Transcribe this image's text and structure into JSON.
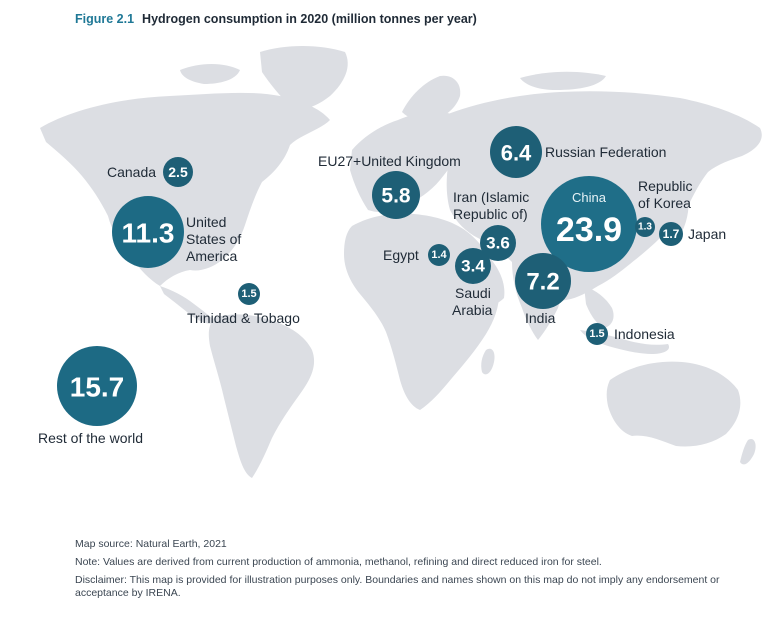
{
  "figure": {
    "number": "Figure 2.1",
    "title": "Hydrogen consumption in 2020 (million tonnes per year)"
  },
  "colors": {
    "bubble": "#1e5f76",
    "land": "#dcdee3",
    "title_accent": "#1f7896"
  },
  "bubbles": [
    {
      "id": "canada",
      "name": "Canada",
      "value": "2.5"
    },
    {
      "id": "usa",
      "name_lines": [
        "United",
        "States of",
        "America"
      ],
      "value": "11.3"
    },
    {
      "id": "tt",
      "name": "Trinidad & Tobago",
      "value": "1.5"
    },
    {
      "id": "row",
      "name": "Rest of the world",
      "value": "15.7"
    },
    {
      "id": "eu",
      "name": "EU27+United Kingdom",
      "value": "5.8"
    },
    {
      "id": "russia",
      "name": "Russian Federation",
      "value": "6.4"
    },
    {
      "id": "iran",
      "name_lines": [
        "Iran (Islamic",
        "Republic of)"
      ],
      "value": "3.6"
    },
    {
      "id": "egypt",
      "name": "Egypt",
      "value": "1.4"
    },
    {
      "id": "saudi",
      "name_lines": [
        "Saudi",
        "Arabia"
      ],
      "value": "3.4"
    },
    {
      "id": "china",
      "name": "China",
      "value": "23.9"
    },
    {
      "id": "india",
      "name": "India",
      "value": "7.2"
    },
    {
      "id": "korea",
      "name_lines": [
        "Republic",
        "of Korea"
      ],
      "value": "1.3"
    },
    {
      "id": "japan",
      "name": "Japan",
      "value": "1.7"
    },
    {
      "id": "indonesia",
      "name": "Indonesia",
      "value": "1.5"
    }
  ],
  "notes": {
    "source": "Map source: Natural Earth, 2021",
    "note": "Note: Values are derived from current production of ammonia, methanol, refining and direct reduced iron for steel.",
    "disclaimer": "Disclaimer: This map is provided for illustration purposes only. Boundaries and names shown on this map do not imply any endorsement or acceptance by IRENA."
  }
}
